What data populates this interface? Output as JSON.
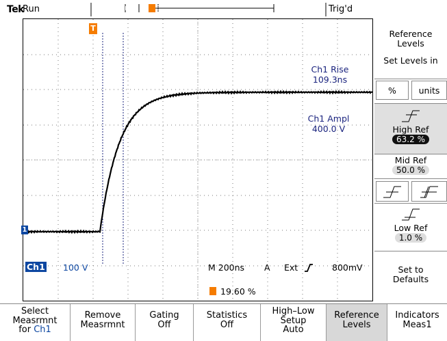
{
  "top": {
    "brand": "Tek",
    "state": "Run",
    "trigger_status": "Trig'd"
  },
  "screen": {
    "readouts": {
      "rise_label": "Ch1 Rise",
      "rise_value": "109.3ns",
      "ampl_label": "Ch1 Ampl",
      "ampl_value": "400.0 V"
    },
    "channel": {
      "name": "Ch1",
      "scale": "100 V",
      "marker": "1"
    },
    "timebase": {
      "label": "M 200ns",
      "trigger_mode": "A",
      "source": "Ext",
      "level": "800mV"
    },
    "trigger_position": {
      "marker": "T",
      "value": "19.60 %"
    }
  },
  "menu_right": {
    "title": "Reference Levels",
    "set_levels": "Set Levels in",
    "units_options": [
      "%",
      "units"
    ],
    "high_ref": {
      "label": "High Ref",
      "value": "63.2 %"
    },
    "mid_ref": {
      "label": "Mid Ref",
      "value": "50.0 %"
    },
    "low_ref": {
      "label": "Low Ref",
      "value": "1.0 %"
    },
    "defaults": "Set to Defaults"
  },
  "menu_bottom": [
    {
      "l1": "Select",
      "l2": "Measrmnt",
      "l3": "for",
      "l3b": "Ch1"
    },
    {
      "l1": "Remove",
      "l2": "Measrmnt",
      "l3": ""
    },
    {
      "l1": "Gating",
      "l2": "Off",
      "l3": ""
    },
    {
      "l1": "Statistics",
      "l2": "Off",
      "l3": ""
    },
    {
      "l1": "High–Low",
      "l2": "Setup",
      "l3": "Auto"
    },
    {
      "l1": "Reference",
      "l2": "Levels",
      "l3": ""
    },
    {
      "l1": "Indicators",
      "l2": "Meas1",
      "l3": ""
    }
  ],
  "colors": {
    "trace": "#000000",
    "readout": "#1a237e",
    "marker_orange": "#f57c00",
    "channel_blue": "#0d47a1"
  }
}
